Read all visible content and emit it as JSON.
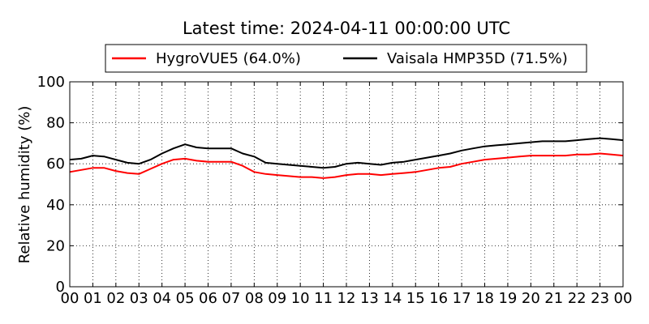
{
  "chart_data": {
    "type": "line",
    "title": "Latest time: 2024-04-11 00:00:00 UTC",
    "xlabel": "",
    "ylabel": "Relative humidity (%)",
    "x_ticks": [
      "00",
      "01",
      "02",
      "03",
      "04",
      "05",
      "06",
      "07",
      "08",
      "09",
      "10",
      "11",
      "12",
      "13",
      "14",
      "15",
      "16",
      "17",
      "18",
      "19",
      "20",
      "21",
      "22",
      "23",
      "00"
    ],
    "y_ticks": [
      0,
      20,
      40,
      60,
      80,
      100
    ],
    "xlim": [
      0,
      24
    ],
    "ylim": [
      0,
      100
    ],
    "grid": true,
    "legend_position": "top",
    "x_hours": [
      0,
      0.5,
      1,
      1.5,
      2,
      2.5,
      3,
      3.5,
      4,
      4.5,
      5,
      5.5,
      6,
      6.5,
      7,
      7.5,
      8,
      8.5,
      9,
      9.5,
      10,
      10.5,
      11,
      11.5,
      12,
      12.5,
      13,
      13.5,
      14,
      14.5,
      15,
      15.5,
      16,
      16.5,
      17,
      17.5,
      18,
      18.5,
      19,
      19.5,
      20,
      20.5,
      21,
      21.5,
      22,
      22.5,
      23,
      23.5,
      24
    ],
    "series": [
      {
        "name": "HygroVUE5 (64.0%)",
        "color": "#ff0000",
        "values": [
          56,
          57,
          58,
          58,
          56.5,
          55.5,
          55,
          57.5,
          60,
          62,
          62.5,
          61.5,
          61,
          61,
          61,
          59,
          56,
          55,
          54.5,
          54,
          53.5,
          53.5,
          53,
          53.5,
          54.5,
          55,
          55,
          54.5,
          55,
          55.5,
          56,
          57,
          58,
          58.5,
          60,
          61,
          62,
          62.5,
          63,
          63.5,
          64,
          64,
          64,
          64,
          64.5,
          64.5,
          65,
          64.5,
          64
        ]
      },
      {
        "name": "Vaisala HMP35D (71.5%)",
        "color": "#000000",
        "values": [
          62,
          62.5,
          64,
          63.5,
          62,
          60.5,
          60,
          62,
          65,
          67.5,
          69.5,
          68,
          67.5,
          67.5,
          67.5,
          65,
          63.5,
          60.5,
          60,
          59.5,
          59,
          58.5,
          58,
          58.5,
          60,
          60.5,
          60,
          59.5,
          60.5,
          61,
          62,
          63,
          64,
          65,
          66.5,
          67.5,
          68.5,
          69,
          69.5,
          70,
          70.5,
          71,
          71,
          71,
          71.5,
          72,
          72.5,
          72,
          71.5
        ]
      }
    ]
  }
}
